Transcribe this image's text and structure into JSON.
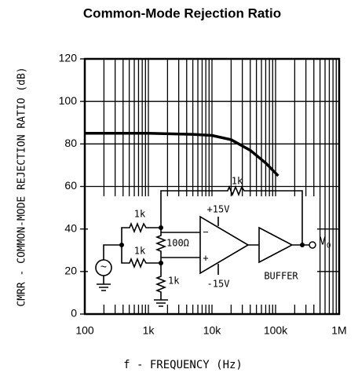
{
  "chart_data": {
    "type": "line",
    "title": "Common-Mode Rejection Ratio",
    "xlabel": "f - FREQUENCY (Hz)",
    "ylabel": "CMRR - COMMON-MODE REJECTION RATIO (dB)",
    "log_x": true,
    "grid": true,
    "xlim": [
      100,
      1000000
    ],
    "xticks": [
      100,
      {
        "value": 1000,
        "label": "1k"
      },
      {
        "value": 10000,
        "label": "10k"
      },
      {
        "value": 100000,
        "label": "100k"
      },
      {
        "value": 1000000,
        "label": "1M"
      }
    ],
    "ylim": [
      0,
      120
    ],
    "yticks": [
      0,
      20,
      40,
      60,
      80,
      100,
      120
    ],
    "series": [
      {
        "color": "#000000",
        "x": [
          100,
          1000,
          5000,
          10000,
          20000,
          40000,
          70000,
          110000
        ],
        "values": [
          85,
          85,
          84.5,
          84,
          82,
          77,
          71,
          65
        ]
      }
    ],
    "circuit": {
      "r1": "1k",
      "r2": "1k",
      "r_feedback": "1k",
      "r_ground": "1k",
      "r_gain": "100Ω",
      "vplus": "+15V",
      "vminus": "-15V",
      "in_minus": "−",
      "in_plus": "+",
      "buffer": "BUFFER",
      "out": "V",
      "out_sub": "O",
      "source": "~"
    }
  }
}
